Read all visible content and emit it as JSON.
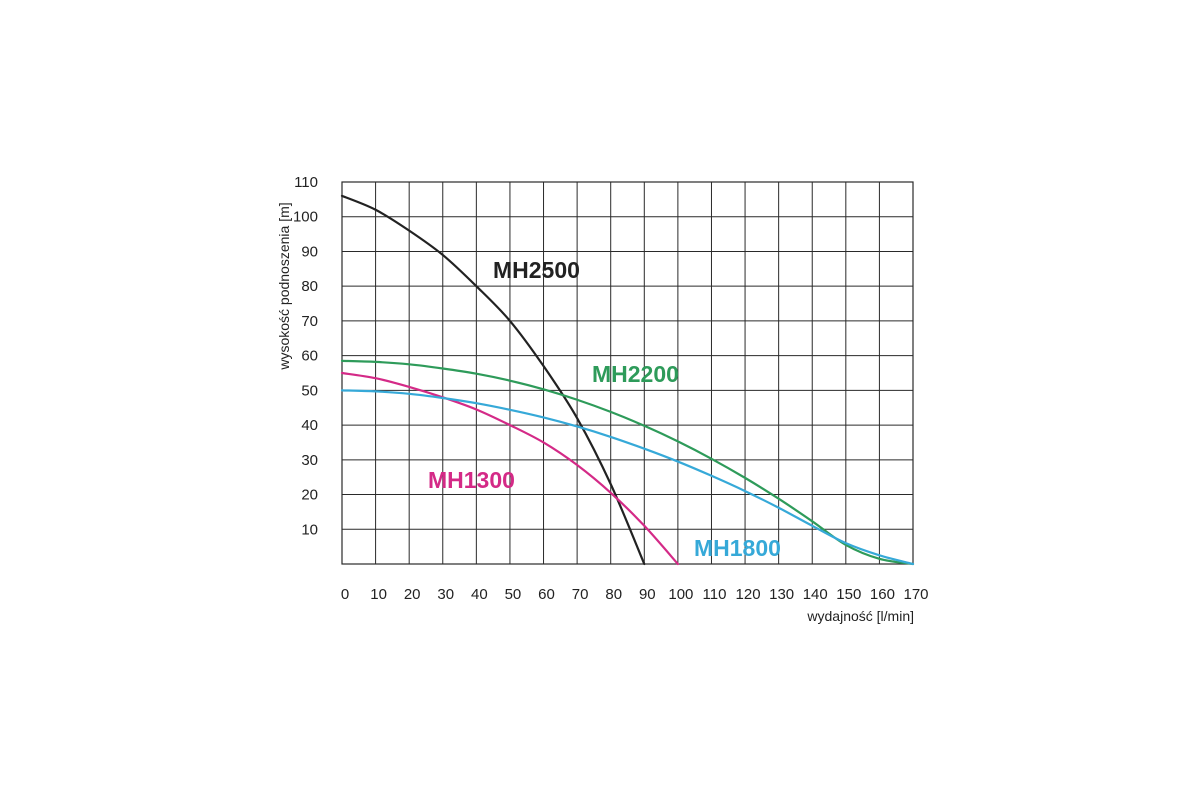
{
  "chart_data": {
    "type": "line",
    "xlabel": "wydajność [l/min]",
    "ylabel": "wysokość podnoszenia [m]",
    "xlim": [
      0,
      170
    ],
    "ylim": [
      0,
      110
    ],
    "x_ticks": [
      "0",
      "10",
      "20",
      "30",
      "40",
      "50",
      "60",
      "70",
      "80",
      "90",
      "100",
      "110",
      "120",
      "130",
      "140",
      "150",
      "160",
      "170"
    ],
    "y_ticks": [
      "10",
      "20",
      "30",
      "40",
      "50",
      "60",
      "70",
      "80",
      "90",
      "100",
      "110"
    ],
    "grid": true,
    "series": [
      {
        "name": "MH2500",
        "color": "#222222",
        "x": [
          0,
          10,
          20,
          30,
          40,
          50,
          60,
          70,
          80,
          90
        ],
        "y": [
          106,
          102,
          96,
          89,
          80,
          70,
          57,
          42,
          23,
          0
        ]
      },
      {
        "name": "MH2200",
        "color": "#2e9b5a",
        "x": [
          0,
          10,
          20,
          30,
          40,
          50,
          60,
          70,
          80,
          90,
          100,
          110,
          120,
          130,
          140,
          150,
          160,
          170
        ],
        "y": [
          58.5,
          58.2,
          57.5,
          56.3,
          54.8,
          52.8,
          50.3,
          47.3,
          43.8,
          39.8,
          35.3,
          30.3,
          24.8,
          18.8,
          12.3,
          5.5,
          1.5,
          0
        ]
      },
      {
        "name": "MH1300",
        "color": "#d42a87",
        "x": [
          0,
          10,
          20,
          30,
          40,
          50,
          60,
          70,
          80,
          90,
          100
        ],
        "y": [
          55,
          53.5,
          51,
          48,
          44.5,
          40,
          35,
          28.5,
          20.5,
          11,
          0
        ]
      },
      {
        "name": "MH1800",
        "color": "#36a9d8",
        "x": [
          0,
          10,
          20,
          30,
          40,
          50,
          60,
          70,
          80,
          90,
          100,
          110,
          120,
          130,
          140,
          150,
          160,
          170
        ],
        "y": [
          50,
          49.7,
          49,
          47.8,
          46.3,
          44.4,
          42.2,
          39.6,
          36.6,
          33.2,
          29.5,
          25.4,
          21,
          16.2,
          11,
          6,
          2.5,
          0
        ]
      }
    ]
  }
}
